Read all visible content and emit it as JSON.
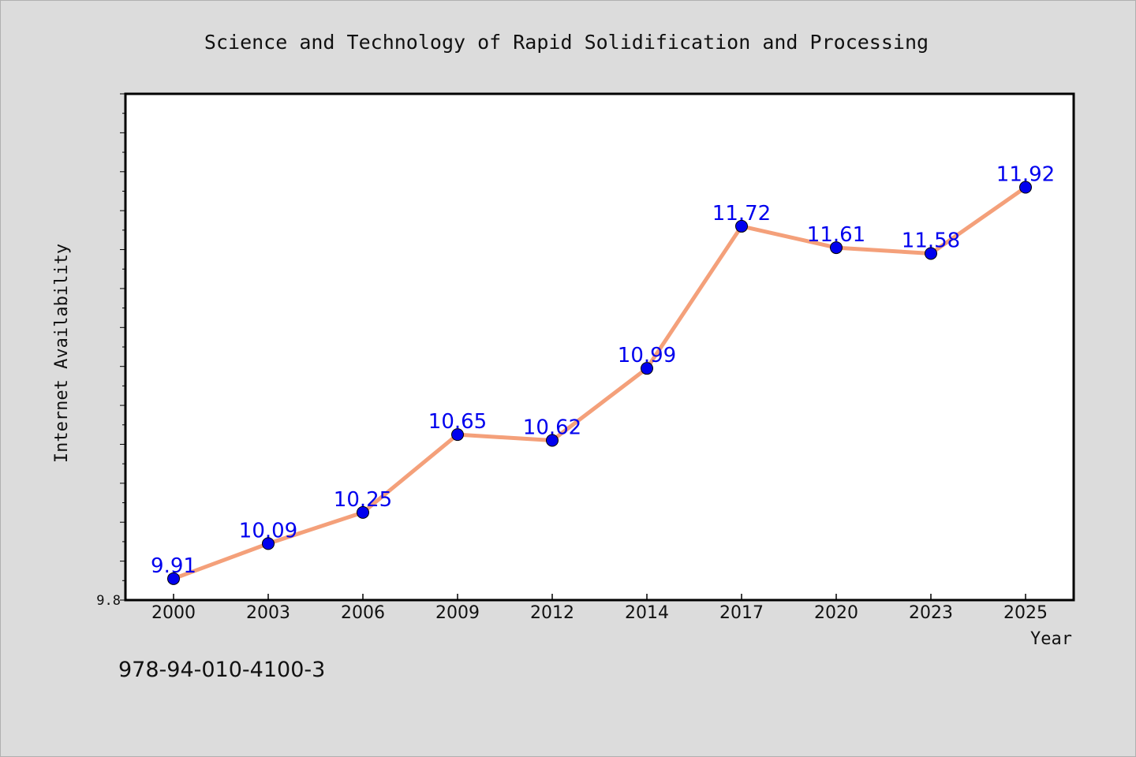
{
  "chart_data": {
    "type": "line",
    "title": "Science and Technology of Rapid Solidification and Processing",
    "xlabel": "Year",
    "ylabel": "Internet Availability",
    "categories": [
      "2000",
      "2003",
      "2006",
      "2009",
      "2012",
      "2014",
      "2017",
      "2020",
      "2023",
      "2025"
    ],
    "series": [
      {
        "values": [
          9.91,
          10.09,
          10.25,
          10.65,
          10.62,
          10.99,
          11.72,
          11.61,
          11.58,
          11.92
        ]
      }
    ],
    "data_labels": [
      "9.91",
      "10.09",
      "10.25",
      "10.65",
      "10.62",
      "10.99",
      "11.72",
      "11.61",
      "11.58",
      "11.92"
    ],
    "y_tick_labels": [
      "9.8"
    ],
    "ylim": [
      9.8,
      12.4
    ],
    "grid": false,
    "legend": "none",
    "colors": {
      "line": "#f4a07a",
      "marker": "#0000ee",
      "data_label": "#0000ee",
      "plot_bg": "#ffffff",
      "page_bg": "#dcdcdc"
    }
  },
  "footer": {
    "isbn": "978-94-010-4100-3"
  }
}
